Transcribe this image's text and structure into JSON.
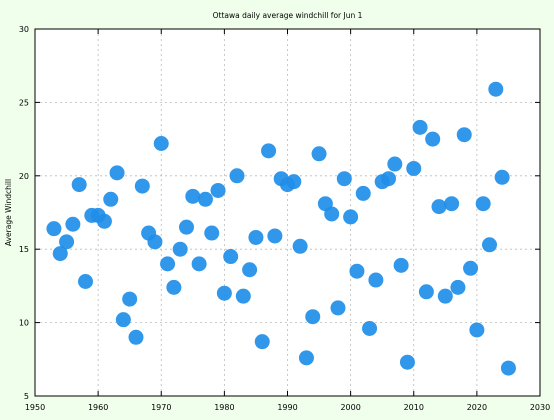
{
  "colors": {
    "background": "#f0ffec",
    "plot_area": "#ffffff",
    "marker": "#1f8ee8",
    "grid": "#bbbbbb"
  },
  "chart_data": {
    "type": "scatter",
    "title": "Ottawa daily average windchill for Jun 1",
    "xlabel": "",
    "ylabel": "Average Windchill",
    "xlim": [
      1950,
      2030
    ],
    "ylim": [
      5,
      30
    ],
    "xticks": [
      1950,
      1960,
      1970,
      1980,
      1990,
      2000,
      2010,
      2020,
      2030
    ],
    "yticks": [
      5,
      10,
      15,
      20,
      25,
      30
    ],
    "grid": true,
    "legend": "none",
    "series": [
      {
        "points": [
          [
            1953,
            16.4
          ],
          [
            1954,
            14.7
          ],
          [
            1955,
            15.5
          ],
          [
            1956,
            16.7
          ],
          [
            1957,
            19.4
          ],
          [
            1958,
            12.8
          ],
          [
            1959,
            17.3
          ],
          [
            1960,
            17.3
          ],
          [
            1961,
            16.9
          ],
          [
            1962,
            18.4
          ],
          [
            1963,
            20.2
          ],
          [
            1964,
            10.2
          ],
          [
            1965,
            11.6
          ],
          [
            1966,
            9.0
          ],
          [
            1967,
            19.3
          ],
          [
            1968,
            16.1
          ],
          [
            1969,
            15.5
          ],
          [
            1970,
            22.2
          ],
          [
            1971,
            14.0
          ],
          [
            1972,
            12.4
          ],
          [
            1973,
            15.0
          ],
          [
            1974,
            16.5
          ],
          [
            1975,
            18.6
          ],
          [
            1976,
            14.0
          ],
          [
            1977,
            18.4
          ],
          [
            1978,
            16.1
          ],
          [
            1979,
            19.0
          ],
          [
            1980,
            12.0
          ],
          [
            1981,
            14.5
          ],
          [
            1982,
            20.0
          ],
          [
            1983,
            11.8
          ],
          [
            1984,
            13.6
          ],
          [
            1985,
            15.8
          ],
          [
            1986,
            8.7
          ],
          [
            1987,
            21.7
          ],
          [
            1988,
            15.9
          ],
          [
            1989,
            19.8
          ],
          [
            1990,
            19.4
          ],
          [
            1991,
            19.6
          ],
          [
            1992,
            15.2
          ],
          [
            1993,
            7.6
          ],
          [
            1994,
            10.4
          ],
          [
            1995,
            21.5
          ],
          [
            1996,
            18.1
          ],
          [
            1997,
            17.4
          ],
          [
            1998,
            11.0
          ],
          [
            1999,
            19.8
          ],
          [
            2000,
            17.2
          ],
          [
            2001,
            13.5
          ],
          [
            2002,
            18.8
          ],
          [
            2003,
            9.6
          ],
          [
            2004,
            12.9
          ],
          [
            2005,
            19.6
          ],
          [
            2006,
            19.8
          ],
          [
            2007,
            20.8
          ],
          [
            2008,
            13.9
          ],
          [
            2009,
            7.3
          ],
          [
            2010,
            20.5
          ],
          [
            2011,
            23.3
          ],
          [
            2012,
            12.1
          ],
          [
            2013,
            22.5
          ],
          [
            2014,
            17.9
          ],
          [
            2015,
            11.8
          ],
          [
            2016,
            18.1
          ],
          [
            2017,
            12.4
          ],
          [
            2018,
            22.8
          ],
          [
            2019,
            13.7
          ],
          [
            2020,
            9.5
          ],
          [
            2021,
            18.1
          ],
          [
            2022,
            15.3
          ],
          [
            2023,
            25.9
          ],
          [
            2024,
            19.9
          ],
          [
            2025,
            6.9
          ]
        ]
      }
    ]
  }
}
